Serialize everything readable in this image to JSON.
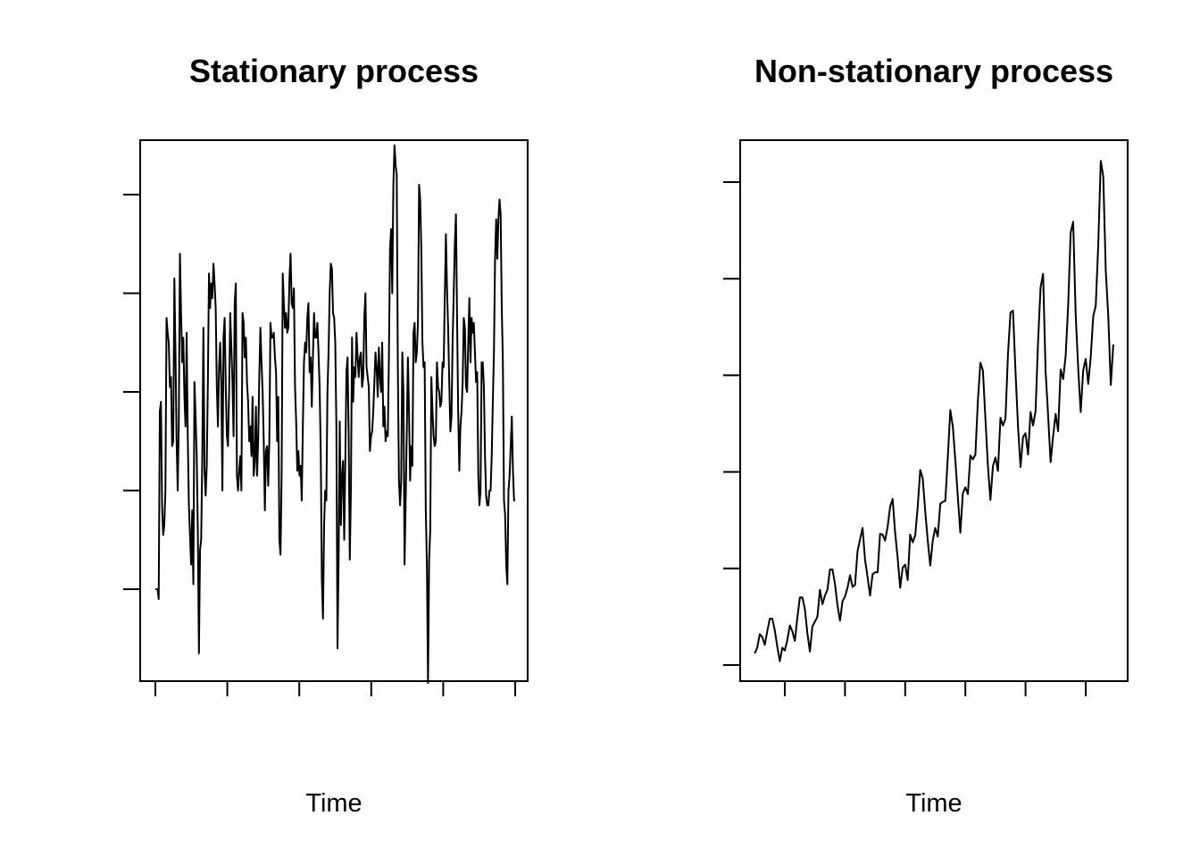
{
  "chart_data": [
    {
      "type": "line",
      "title": "Stationary process",
      "xlabel": "Time",
      "ylabel": "",
      "xlim": [
        0,
        100
      ],
      "ylim": [
        0,
        100
      ],
      "x_ticks": [
        0,
        20,
        40,
        60,
        80,
        100
      ],
      "y_ticks": [
        0,
        20,
        40,
        60,
        80
      ],
      "grid": false,
      "values": [
        0.0,
        0.0,
        0.0,
        -2.0,
        36.0,
        38.0,
        17.0,
        11.0,
        13.0,
        20.0,
        55.0,
        52.0,
        50.0,
        41.0,
        43.0,
        29.0,
        30.0,
        63.0,
        48.0,
        30.0,
        20.0,
        34.0,
        68.0,
        56.0,
        46.0,
        51.0,
        39.0,
        33.0,
        52.0,
        31.0,
        17.0,
        11.0,
        5.0,
        16.0,
        1.0,
        42.0,
        35.0,
        27.0,
        12.0,
        -13.0,
        8.0,
        10.0,
        27.0,
        53.0,
        24.0,
        19.0,
        25.0,
        42.0,
        64.0,
        57.0,
        62.0,
        59.0,
        66.0,
        62.0,
        57.0,
        41.0,
        33.0,
        45.0,
        50.0,
        42.0,
        20.0,
        51.0,
        55.0,
        41.0,
        31.0,
        29.0,
        40.0,
        56.0,
        49.0,
        42.0,
        31.0,
        58.0,
        62.0,
        23.0,
        20.0,
        24.0,
        27.0,
        20.0,
        56.0,
        54.0,
        47.0,
        51.0,
        42.0,
        38.0,
        30.0,
        33.0,
        27.0,
        39.0,
        23.0,
        26.0,
        37.0,
        23.0,
        30.0,
        43.0,
        53.0,
        46.0,
        40.0,
        30.0,
        16.0,
        28.0,
        29.0,
        21.0,
        30.0,
        54.0,
        51.0,
        51.0,
        52.0,
        47.0,
        44.0,
        30.0,
        39.0,
        10.0,
        7.0,
        23.0,
        64.0,
        58.0,
        53.0,
        56.0,
        52.0,
        53.0,
        63.0,
        68.0,
        58.0,
        57.0,
        61.0,
        41.0,
        34.0,
        24.0,
        28.0,
        23.0,
        25.0,
        18.0,
        33.0,
        46.0,
        50.0,
        48.0,
        55.0,
        58.0,
        44.0,
        47.0,
        37.0,
        47.0,
        56.0,
        51.0,
        51.0,
        54.0,
        48.0,
        41.0,
        28.0,
        2.0,
        -6.0,
        13.0,
        20.0,
        18.0,
        40.0,
        48.0,
        60.0,
        66.0,
        65.0,
        56.0,
        55.0,
        50.0,
        33.0,
        -12.0,
        6.0,
        34.0,
        13.0,
        23.0,
        26.0,
        10.0,
        26.0,
        44.0,
        47.0,
        31.0,
        6.0,
        20.0,
        51.0,
        38.0,
        45.0,
        43.0,
        52.0,
        47.0,
        43.0,
        47.0,
        48.0,
        41.0,
        43.0,
        55.0,
        60.0,
        45.0,
        43.0,
        41.0,
        28.0,
        31.0,
        32.0,
        36.0,
        42.0,
        48.0,
        45.0,
        39.0,
        49.0,
        43.0,
        40.0,
        50.0,
        33.0,
        37.0,
        30.0,
        32.0,
        31.0,
        47.0,
        69.0,
        73.0,
        60.0,
        82.0,
        90.0,
        86.0,
        84.0,
        45.0,
        22.0,
        17.0,
        22.0,
        48.0,
        40.0,
        5.0,
        18.0,
        32.0,
        47.0,
        36.0,
        22.0,
        29.0,
        25.0,
        52.0,
        54.0,
        46.0,
        48.0,
        54.0,
        82.0,
        79.0,
        69.0,
        50.0,
        45.0,
        46.0,
        16.0,
        5.0,
        -19.0,
        6.0,
        12.0,
        43.0,
        36.0,
        31.0,
        29.0,
        30.0,
        46.0,
        41.0,
        40.0,
        37.0,
        38.0,
        46.0,
        45.0,
        59.0,
        72.0,
        61.0,
        53.0,
        42.0,
        32.0,
        35.0,
        50.0,
        60.0,
        70.0,
        76.0,
        55.0,
        36.0,
        24.0,
        33.0,
        36.0,
        42.0,
        55.0,
        53.0,
        41.0,
        40.0,
        50.0,
        59.0,
        46.0,
        55.0,
        52.0,
        54.0,
        48.0,
        42.0,
        44.0,
        23.0,
        17.0,
        20.0,
        46.0,
        46.0,
        41.0,
        27.0,
        19.0,
        17.0,
        17.0,
        20.0,
        20.0,
        27.0,
        38.0,
        48.0,
        67.0,
        75.0,
        67.0,
        75.0,
        79.0,
        76.0,
        57.0,
        46.0,
        18.0,
        15.0,
        5.0,
        1.0,
        20.0,
        23.0,
        29.0,
        35.0,
        24.0,
        18.0,
        18.0
      ]
    },
    {
      "type": "line",
      "title": "Non-stationary process",
      "xlabel": "Time",
      "ylabel": "",
      "xlim": [
        1949,
        1961
      ],
      "ylim": [
        100,
        620
      ],
      "x_ticks": [
        1950,
        1952,
        1954,
        1956,
        1958,
        1960
      ],
      "y_ticks": [
        100,
        200,
        300,
        400,
        500,
        600
      ],
      "grid": false,
      "x_start": 1949,
      "frequency": 12,
      "values": [
        112,
        118,
        132,
        129,
        121,
        135,
        148,
        148,
        136,
        119,
        104,
        118,
        115,
        126,
        141,
        135,
        125,
        149,
        170,
        170,
        158,
        133,
        114,
        140,
        145,
        150,
        178,
        163,
        172,
        178,
        199,
        199,
        184,
        162,
        146,
        166,
        171,
        180,
        193,
        181,
        183,
        218,
        230,
        242,
        209,
        191,
        172,
        194,
        196,
        196,
        236,
        235,
        229,
        243,
        264,
        272,
        237,
        211,
        180,
        201,
        204,
        188,
        235,
        227,
        234,
        264,
        302,
        293,
        259,
        229,
        203,
        229,
        242,
        233,
        267,
        269,
        270,
        315,
        364,
        347,
        312,
        274,
        237,
        278,
        284,
        277,
        317,
        313,
        318,
        374,
        413,
        405,
        355,
        306,
        271,
        306,
        315,
        301,
        356,
        348,
        355,
        422,
        465,
        467,
        404,
        347,
        305,
        336,
        340,
        318,
        362,
        348,
        363,
        435,
        491,
        505,
        404,
        359,
        310,
        337,
        360,
        342,
        406,
        396,
        420,
        472,
        548,
        559,
        463,
        407,
        362,
        405,
        417,
        391,
        419,
        461,
        472,
        535,
        622,
        606,
        508,
        461,
        390,
        432
      ]
    }
  ]
}
